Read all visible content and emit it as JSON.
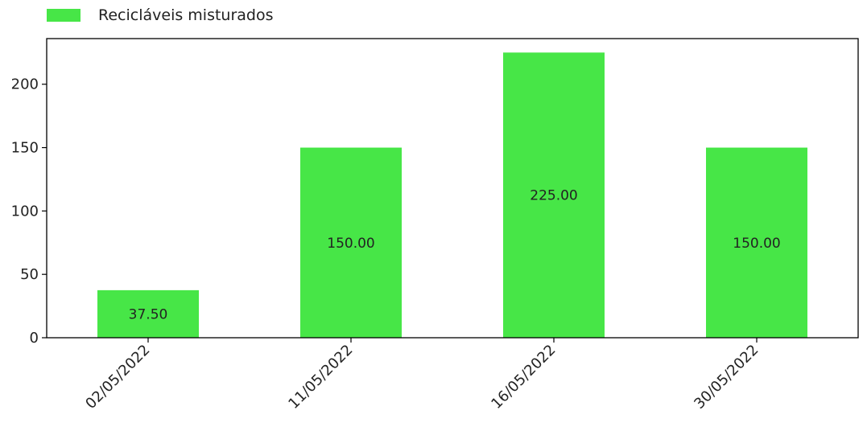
{
  "chart_data": {
    "type": "bar",
    "categories": [
      "02/05/2022",
      "11/05/2022",
      "16/05/2022",
      "30/05/2022"
    ],
    "series": [
      {
        "name": "Recicláveis misturados",
        "values": [
          37.5,
          150,
          225,
          150
        ],
        "data_labels": [
          "37.50",
          "150.00",
          "225.00",
          "150.00"
        ],
        "color": "#47e647"
      }
    ],
    "yticks": [
      0,
      50,
      100,
      150,
      200
    ],
    "ylim": [
      0,
      236
    ],
    "legend_position": "top-left",
    "grid": false,
    "xlabel": "",
    "ylabel": "",
    "title": ""
  }
}
